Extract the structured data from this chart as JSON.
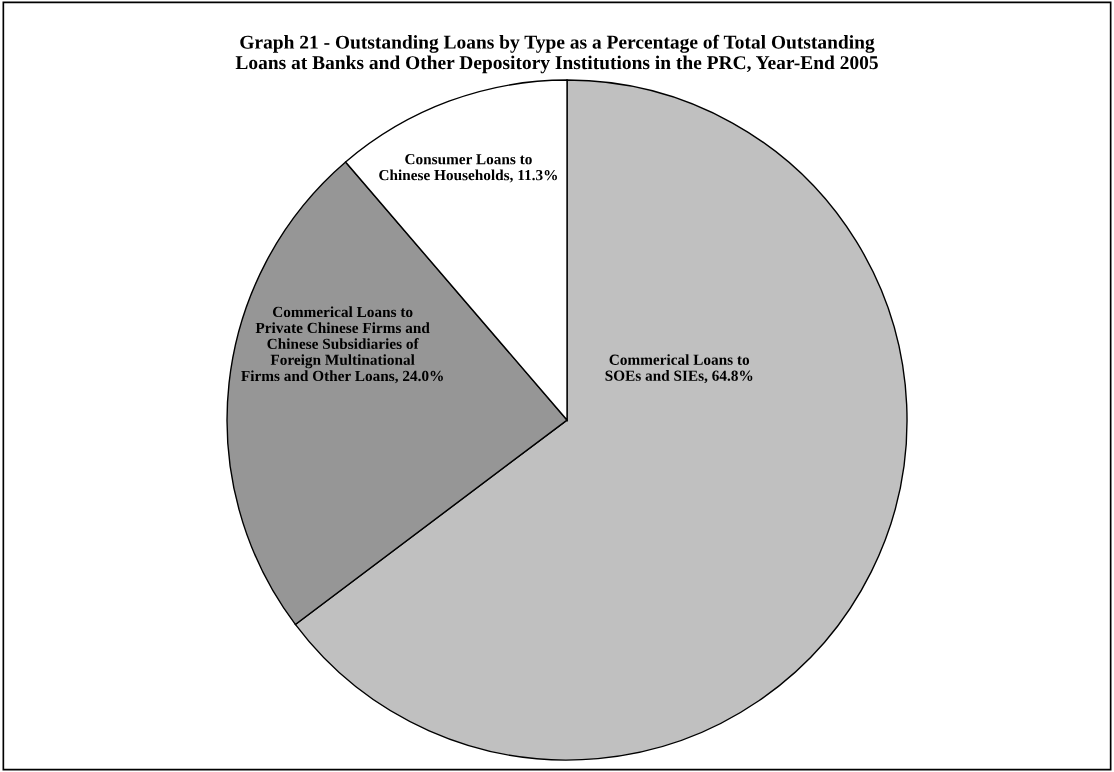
{
  "chart_data": {
    "type": "pie",
    "title": "Graph 21 - Outstanding Loans by Type as a Percentage of Total Outstanding\nLoans at Banks and Other Depository Institutions in the PRC, Year-End 2005",
    "categories": [
      "Commerical Loans to\nSOEs and SIEs",
      "Commerical Loans to\nPrivate Chinese Firms and\nChinese Subsidiaries of\nForeign Multinational\nFirms and Other Loans",
      "Consumer Loans to\nChinese Households"
    ],
    "values": [
      64.8,
      24.0,
      11.3
    ],
    "value_labels": [
      "64.8%",
      "24.0%",
      "11.3%"
    ],
    "colors": [
      "#c0c0c0",
      "#969696",
      "#ffffff"
    ]
  }
}
